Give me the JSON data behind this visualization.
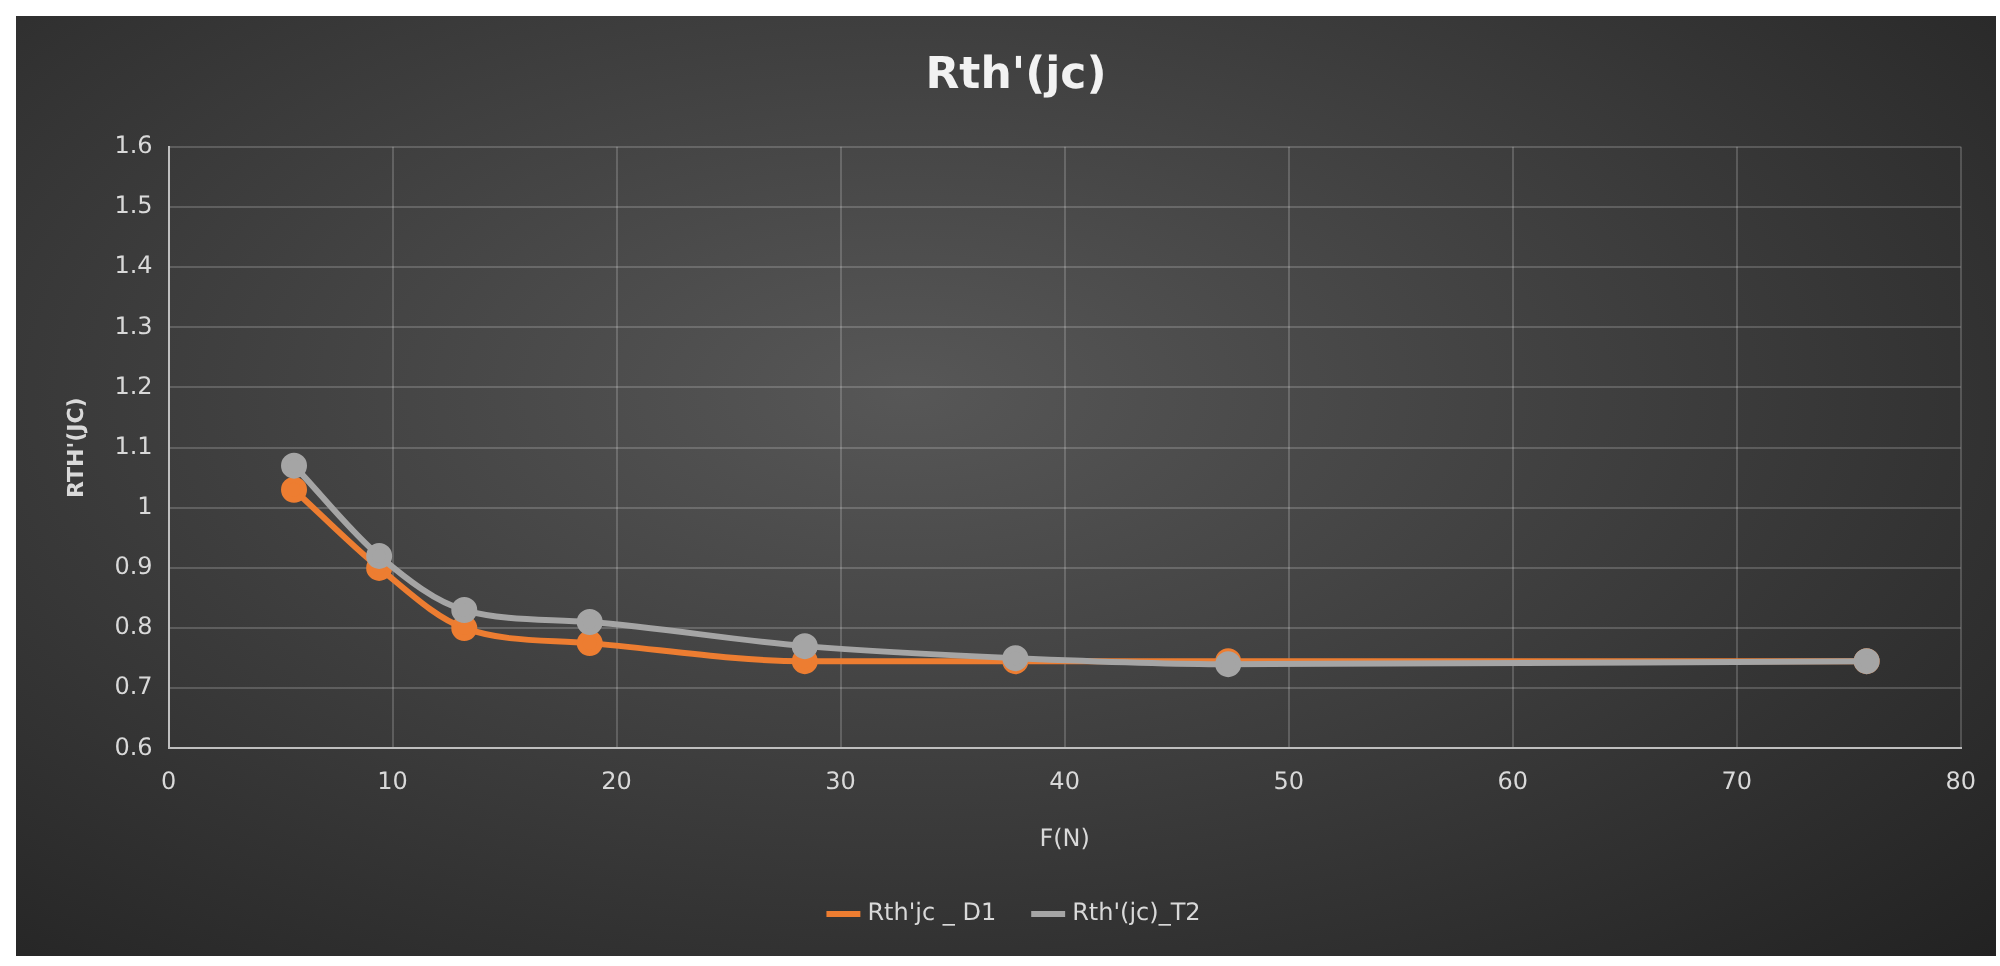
{
  "chart_data": {
    "type": "line",
    "title": "Rth'(jc)",
    "xlabel": "F(N)",
    "ylabel": "RTH'(JC)",
    "x": [
      5.6,
      9.4,
      13.2,
      18.8,
      28.4,
      37.8,
      47.3,
      75.8
    ],
    "series": [
      {
        "name": "Rth'jc _ D1",
        "color": "#ed7d31",
        "values": [
          1.03,
          0.9,
          0.8,
          0.775,
          0.745,
          0.745,
          0.745,
          0.745
        ]
      },
      {
        "name": "Rth'(jc)_T2",
        "color": "#a5a5a5",
        "values": [
          1.07,
          0.92,
          0.83,
          0.81,
          0.77,
          0.75,
          0.74,
          0.745
        ]
      }
    ],
    "xlim": [
      0,
      80
    ],
    "xticks": [
      0,
      10,
      20,
      30,
      40,
      50,
      60,
      70,
      80
    ],
    "ylim": [
      0.6,
      1.6
    ],
    "yticks": [
      0.6,
      0.7,
      0.8,
      0.9,
      1,
      1.1,
      1.2,
      1.3,
      1.4,
      1.5,
      1.6
    ],
    "grid": true,
    "legend": "bottom",
    "marker": "circle",
    "line_style": "solid"
  }
}
